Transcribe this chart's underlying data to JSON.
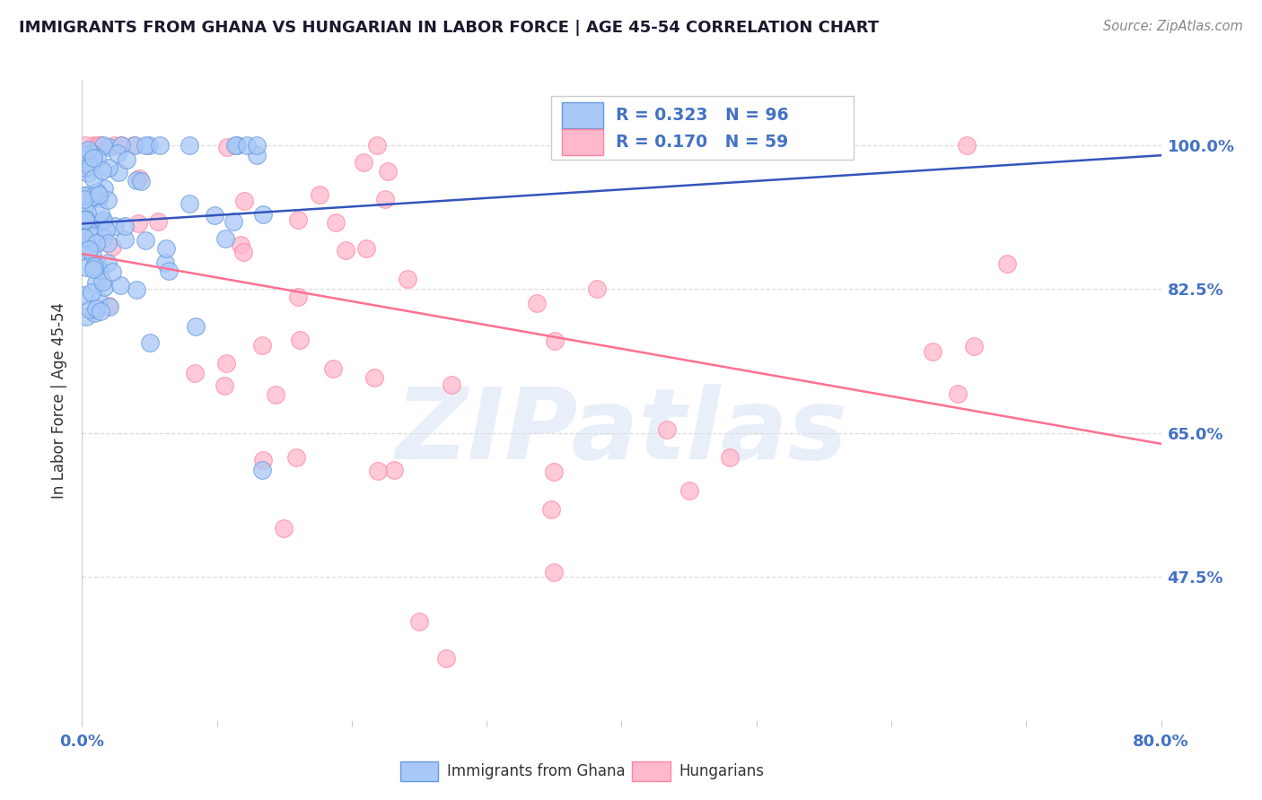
{
  "title": "IMMIGRANTS FROM GHANA VS HUNGARIAN IN LABOR FORCE | AGE 45-54 CORRELATION CHART",
  "source": "Source: ZipAtlas.com",
  "ylabel": "In Labor Force | Age 45-54",
  "ytick_labels": [
    "100.0%",
    "82.5%",
    "65.0%",
    "47.5%"
  ],
  "ytick_values": [
    1.0,
    0.825,
    0.65,
    0.475
  ],
  "xlim": [
    0.0,
    0.8
  ],
  "ylim": [
    0.3,
    1.08
  ],
  "ghana_color": "#A8C8F8",
  "ghana_edge_color": "#6699DD",
  "hungarian_color": "#FFB8CC",
  "hungarian_edge_color": "#FF85A0",
  "trendline_ghana_color": "#3355BB",
  "trendline_hungarian_color": "#FF7090",
  "legend_ghana_R": "0.323",
  "legend_ghana_N": "96",
  "legend_hungarian_R": "0.170",
  "legend_hungarian_N": "59",
  "legend_text_color": "#4472C4",
  "watermark_color": "#C8D8F0",
  "background_color": "#FFFFFF",
  "grid_color": "#DDDDDD",
  "title_color": "#1A1A2E",
  "source_color": "#888888",
  "ylabel_color": "#333333",
  "tick_color": "#4472C4"
}
